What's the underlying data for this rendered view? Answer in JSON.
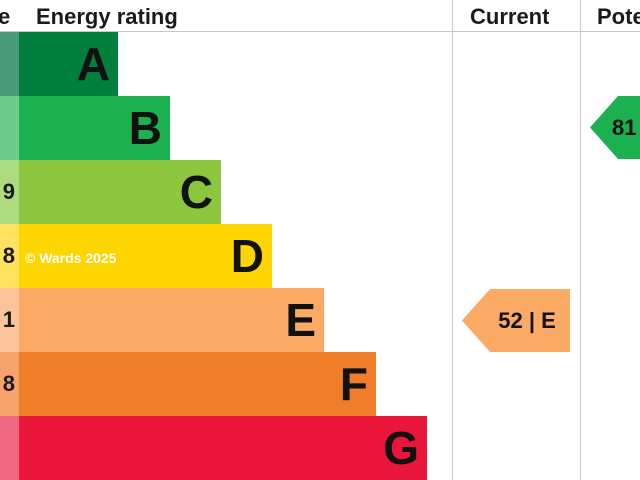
{
  "header": {
    "score_partial": "e",
    "energy_rating": "Energy rating",
    "current": "Current",
    "potential_partial": "Pote"
  },
  "bands": [
    {
      "letter": "A",
      "score_partial": "",
      "color": "#007f3d",
      "score_color": "#4b9b7a"
    },
    {
      "letter": "B",
      "score_partial": "",
      "color": "#1db050",
      "score_color": "#6dcb8c"
    },
    {
      "letter": "C",
      "score_partial": "9",
      "color": "#8cc63f",
      "score_color": "#aedb80"
    },
    {
      "letter": "D",
      "score_partial": "8",
      "color": "#ffd500",
      "score_color": "#ffe260"
    },
    {
      "letter": "E",
      "score_partial": "1",
      "color": "#fbaa65",
      "score_color": "#fcc49b"
    },
    {
      "letter": "F",
      "score_partial": "8",
      "color": "#ef7d29",
      "score_color": "#f4a36a"
    },
    {
      "letter": "G",
      "score_partial": "",
      "color": "#e9153b",
      "score_color": "#ef6680"
    }
  ],
  "watermark": "© Wards 2025",
  "current_rating": {
    "label": "52 | E",
    "color": "#fbaa65"
  },
  "potential_rating": {
    "label": "81",
    "color": "#1db050"
  }
}
